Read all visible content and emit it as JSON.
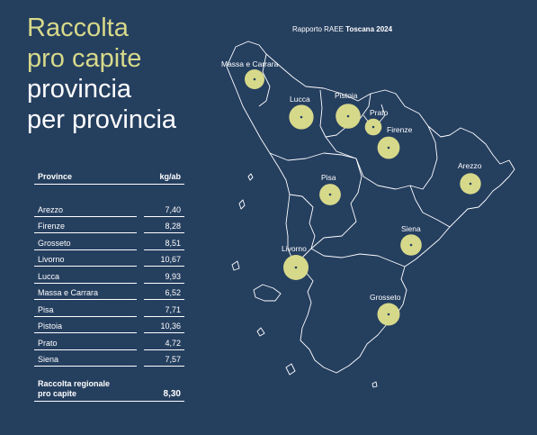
{
  "title": {
    "line1": "Raccolta",
    "line2": "pro capite",
    "line3": "provincia",
    "line4": "per provincia"
  },
  "report": {
    "prefix": "Rapporto RAEE",
    "bold": "Toscana 2024"
  },
  "table": {
    "header_province": "Province",
    "header_unit": "kg/ab",
    "rows": [
      {
        "province": "Arezzo",
        "value": "7,40"
      },
      {
        "province": "Firenze",
        "value": "8,28"
      },
      {
        "province": "Grosseto",
        "value": "8,51"
      },
      {
        "province": "Livorno",
        "value": "10,67"
      },
      {
        "province": "Lucca",
        "value": "9,93"
      },
      {
        "province": "Massa e Carrara",
        "value": "6,52"
      },
      {
        "province": "Pisa",
        "value": "7,71"
      },
      {
        "province": "Pistoia",
        "value": "10,36"
      },
      {
        "province": "Prato",
        "value": "4,72"
      },
      {
        "province": "Siena",
        "value": "7,57"
      }
    ],
    "total_label_1": "Raccolta regionale",
    "total_label_2": "pro capite",
    "total_value": "8,30"
  },
  "map": {
    "bubble_color": "#d7d98a",
    "labels": {
      "massa": "Massa e Carrara",
      "lucca": "Lucca",
      "pistoia": "Pistoia",
      "prato": "Prato",
      "firenze": "Firenze",
      "arezzo": "Arezzo",
      "pisa": "Pisa",
      "livorno": "Livorno",
      "siena": "Siena",
      "grosseto": "Grosseto"
    }
  }
}
